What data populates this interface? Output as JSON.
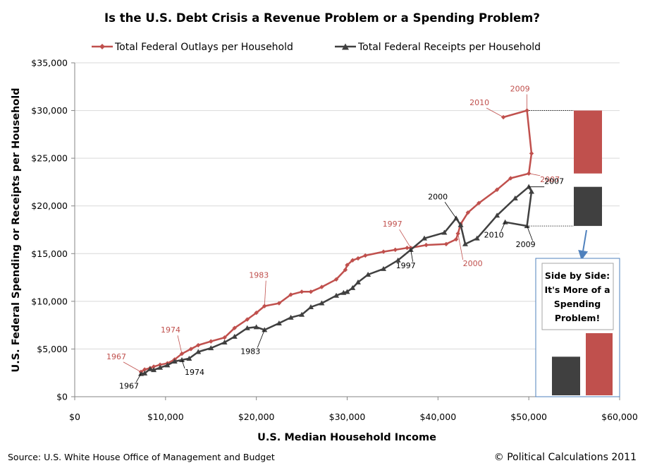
{
  "chart_data": {
    "type": "line",
    "title": "Is the U.S. Debt Crisis a Revenue Problem or a Spending Problem?",
    "xlabel": "U.S. Median Household Income",
    "ylabel": "U.S. Federal Spending or Receipts per Household",
    "xlim": [
      0,
      60000
    ],
    "ylim": [
      0,
      35000
    ],
    "x_ticks": [
      "$0",
      "$10,000",
      "$20,000",
      "$30,000",
      "$40,000",
      "$50,000",
      "$60,000"
    ],
    "y_ticks": [
      "$0",
      "$5,000",
      "$10,000",
      "$15,000",
      "$20,000",
      "$25,000",
      "$30,000",
      "$35,000"
    ],
    "grid": "horizontal",
    "legend_position": "top",
    "series": [
      {
        "name": "Total Federal Outlays per Household",
        "color": "#c0504d",
        "marker": "diamond",
        "points": [
          [
            7300,
            2600
          ],
          [
            7700,
            2850
          ],
          [
            8300,
            3000
          ],
          [
            8700,
            3150
          ],
          [
            9400,
            3350
          ],
          [
            10200,
            3500
          ],
          [
            11000,
            3900
          ],
          [
            11800,
            4500
          ],
          [
            12800,
            5000
          ],
          [
            13600,
            5400
          ],
          [
            15000,
            5800
          ],
          [
            16500,
            6200
          ],
          [
            17600,
            7200
          ],
          [
            19000,
            8100
          ],
          [
            20000,
            8800
          ],
          [
            20900,
            9500
          ],
          [
            22500,
            9800
          ],
          [
            23800,
            10700
          ],
          [
            25000,
            11000
          ],
          [
            26000,
            11000
          ],
          [
            27200,
            11500
          ],
          [
            28800,
            12300
          ],
          [
            29800,
            13300
          ],
          [
            30000,
            13800
          ],
          [
            30600,
            14300
          ],
          [
            31200,
            14500
          ],
          [
            32000,
            14800
          ],
          [
            34000,
            15200
          ],
          [
            35300,
            15400
          ],
          [
            36600,
            15600
          ],
          [
            37000,
            15600
          ],
          [
            38700,
            15900
          ],
          [
            40900,
            16000
          ],
          [
            42000,
            16500
          ],
          [
            42200,
            17100
          ],
          [
            42500,
            18100
          ],
          [
            43300,
            19300
          ],
          [
            44500,
            20300
          ],
          [
            46500,
            21700
          ],
          [
            48000,
            22900
          ],
          [
            50000,
            23400
          ],
          [
            50300,
            25500
          ],
          [
            49800,
            30000
          ],
          [
            47200,
            29300
          ]
        ]
      },
      {
        "name": "Total Federal Receipts per Household",
        "color": "#404040",
        "marker": "triangle",
        "points": [
          [
            7300,
            2400
          ],
          [
            7700,
            2450
          ],
          [
            8300,
            2900
          ],
          [
            8700,
            2800
          ],
          [
            9400,
            3050
          ],
          [
            10200,
            3300
          ],
          [
            11000,
            3700
          ],
          [
            11800,
            3850
          ],
          [
            12600,
            4000
          ],
          [
            13600,
            4700
          ],
          [
            15000,
            5100
          ],
          [
            16500,
            5700
          ],
          [
            17600,
            6300
          ],
          [
            19000,
            7200
          ],
          [
            20000,
            7300
          ],
          [
            20900,
            7000
          ],
          [
            22500,
            7700
          ],
          [
            23800,
            8300
          ],
          [
            25000,
            8600
          ],
          [
            26000,
            9400
          ],
          [
            27200,
            9800
          ],
          [
            28800,
            10600
          ],
          [
            29600,
            10900
          ],
          [
            30000,
            11000
          ],
          [
            30600,
            11400
          ],
          [
            31200,
            12000
          ],
          [
            32300,
            12800
          ],
          [
            34000,
            13400
          ],
          [
            35600,
            14300
          ],
          [
            37000,
            15400
          ],
          [
            38500,
            16600
          ],
          [
            40700,
            17200
          ],
          [
            42000,
            18700
          ],
          [
            42500,
            18000
          ],
          [
            43000,
            16000
          ],
          [
            44300,
            16600
          ],
          [
            46500,
            19000
          ],
          [
            48500,
            20800
          ],
          [
            50000,
            22000
          ],
          [
            50300,
            21500
          ],
          [
            49800,
            17900
          ],
          [
            47400,
            18300
          ]
        ]
      }
    ],
    "annotations": {
      "outlays": [
        {
          "label": "1967",
          "x": 7300,
          "y": 2600
        },
        {
          "label": "1974",
          "x": 11800,
          "y": 4500
        },
        {
          "label": "1983",
          "x": 20900,
          "y": 9500
        },
        {
          "label": "1997",
          "x": 37000,
          "y": 15600
        },
        {
          "label": "2000",
          "x": 42200,
          "y": 17100
        },
        {
          "label": "2007",
          "x": 50000,
          "y": 23400
        },
        {
          "label": "2009",
          "x": 49800,
          "y": 30000
        },
        {
          "label": "2010",
          "x": 47200,
          "y": 29300
        }
      ],
      "receipts": [
        {
          "label": "1967",
          "x": 7300,
          "y": 2400
        },
        {
          "label": "1974",
          "x": 11800,
          "y": 3850
        },
        {
          "label": "1983",
          "x": 20900,
          "y": 7000
        },
        {
          "label": "1997",
          "x": 37000,
          "y": 15400
        },
        {
          "label": "2000",
          "x": 42000,
          "y": 18700
        },
        {
          "label": "2007",
          "x": 50000,
          "y": 22000
        },
        {
          "label": "2009",
          "x": 49800,
          "y": 17900
        },
        {
          "label": "2010",
          "x": 47400,
          "y": 18300
        }
      ]
    },
    "side_bars": {
      "outlays": {
        "from": 23400,
        "to": 30000
      },
      "receipts": {
        "from": 17900,
        "to": 22000
      }
    },
    "callout": {
      "lines": [
        "Side by Side:",
        "It's More of a",
        "Spending",
        "Problem!"
      ],
      "receipts_gap": 4100,
      "outlays_gap": 6600
    }
  },
  "footer": {
    "source": "Source: U.S. White House Office of Management and Budget",
    "copyright": "© Political Calculations 2011"
  }
}
